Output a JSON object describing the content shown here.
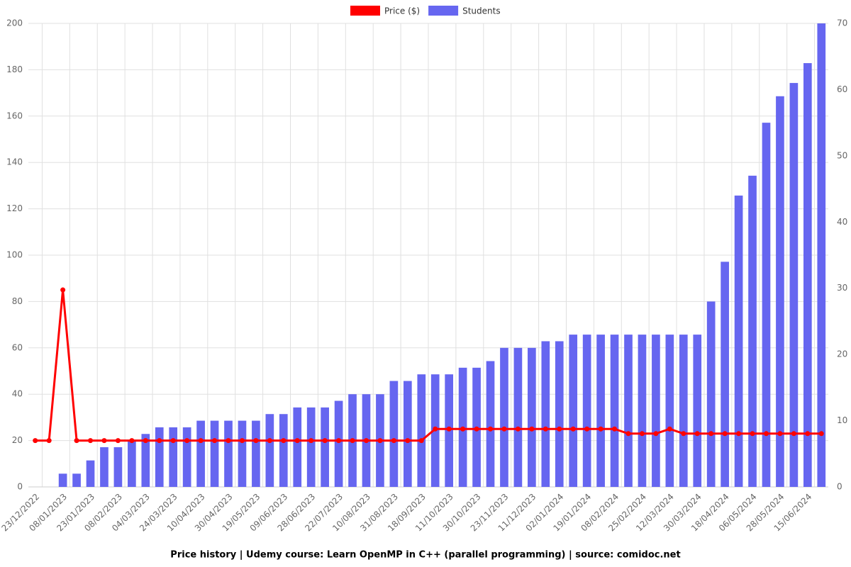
{
  "chart_data": {
    "type": "bar",
    "title": "Price history | Udemy course: Learn OpenMP in C++ (parallel programming) | source: comidoc.net",
    "categories": [
      "23/12/2022",
      null,
      "08/01/2023",
      null,
      "23/01/2023",
      null,
      "08/02/2023",
      null,
      "04/03/2023",
      null,
      "24/03/2023",
      null,
      "10/04/2023",
      null,
      "30/04/2023",
      null,
      "19/05/2023",
      null,
      "09/06/2023",
      null,
      "28/06/2023",
      null,
      "22/07/2023",
      null,
      "10/08/2023",
      null,
      "31/08/2023",
      null,
      "18/09/2023",
      null,
      "11/10/2023",
      null,
      "30/10/2023",
      null,
      "23/11/2023",
      null,
      "11/12/2023",
      null,
      "02/01/2024",
      null,
      "19/01/2024",
      null,
      "08/02/2024",
      null,
      "25/02/2024",
      null,
      "12/03/2024",
      null,
      "30/03/2024",
      null,
      "18/04/2024",
      null,
      "06/05/2024",
      null,
      "28/05/2024",
      null,
      "15/06/2024",
      null
    ],
    "series": [
      {
        "name": "Price ($)",
        "type": "line",
        "color": "#ff0000",
        "values": [
          20,
          20,
          85,
          20,
          20,
          20,
          20,
          20,
          20,
          20,
          20,
          20,
          20,
          20,
          20,
          20,
          20,
          20,
          20,
          20,
          20,
          20,
          20,
          20,
          20,
          20,
          20,
          20,
          20,
          25,
          25,
          25,
          25,
          25,
          25,
          25,
          25,
          25,
          25,
          25,
          25,
          25,
          25,
          23,
          23,
          23,
          25,
          23,
          23,
          23,
          23,
          23,
          23,
          23,
          23,
          23,
          23,
          23
        ]
      },
      {
        "name": "Students",
        "type": "bar",
        "axis": "y2",
        "color": "#6666f0",
        "values": [
          0,
          0,
          2,
          2,
          4,
          6,
          6,
          7,
          8,
          9,
          9,
          9,
          10,
          10,
          10,
          10,
          10,
          11,
          11,
          12,
          12,
          12,
          13,
          14,
          14,
          14,
          16,
          16,
          17,
          17,
          17,
          18,
          18,
          19,
          21,
          21,
          21,
          22,
          22,
          23,
          23,
          23,
          23,
          23,
          23,
          23,
          23,
          23,
          23,
          28,
          34,
          44,
          47,
          55,
          59,
          61,
          64,
          70
        ]
      }
    ],
    "ylim": [
      0,
      200
    ],
    "yticks": [
      0,
      20,
      40,
      60,
      80,
      100,
      120,
      140,
      160,
      180,
      200
    ],
    "y2lim": [
      0,
      70
    ],
    "y2ticks": [
      0,
      10,
      20,
      30,
      40,
      50,
      60,
      70
    ],
    "grid": true,
    "legend": "top"
  }
}
